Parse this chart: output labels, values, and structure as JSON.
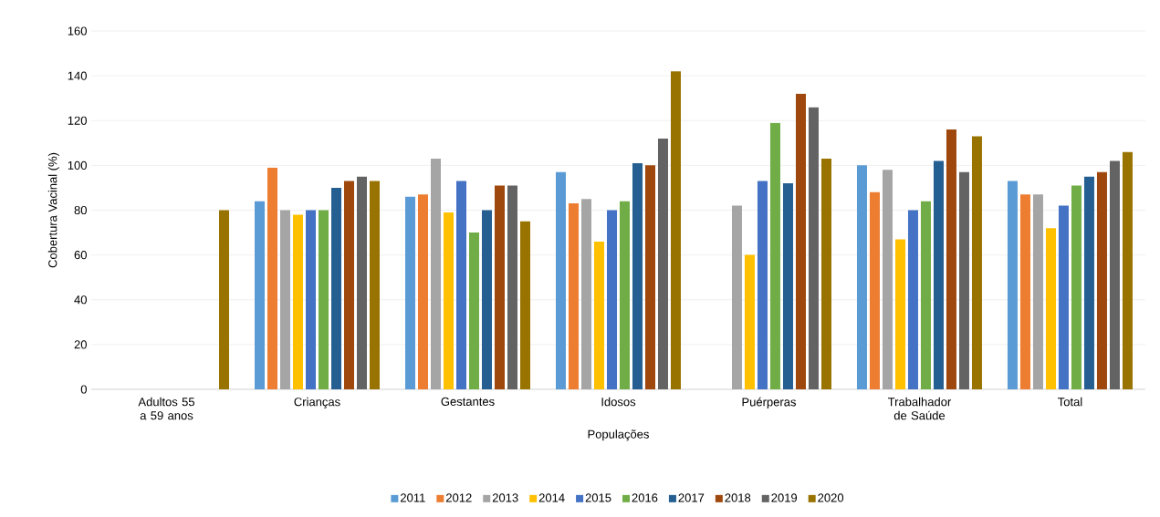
{
  "chart_data": {
    "type": "bar",
    "categories": [
      "Adultos 55 a 59 anos",
      "Crianças",
      "Gestantes",
      "Idosos",
      "Puérperas",
      "Trabalhador de Saúde",
      "Total"
    ],
    "xlabel": "Populações",
    "ylabel": "Cobertura Vacinal (%)",
    "ylim": [
      0,
      160
    ],
    "yticks": [
      0,
      20,
      40,
      60,
      80,
      100,
      120,
      140,
      160
    ],
    "grid": "y",
    "legend": "bottom",
    "series": [
      {
        "name": "2011",
        "color": "#5b9bd5",
        "values": [
          null,
          84,
          86,
          97,
          null,
          100,
          93
        ]
      },
      {
        "name": "2012",
        "color": "#ed7d31",
        "values": [
          null,
          99,
          87,
          83,
          null,
          88,
          87
        ]
      },
      {
        "name": "2013",
        "color": "#a5a5a5",
        "values": [
          null,
          80,
          103,
          85,
          82,
          98,
          87
        ]
      },
      {
        "name": "2014",
        "color": "#ffc000",
        "values": [
          null,
          78,
          79,
          66,
          60,
          67,
          72
        ]
      },
      {
        "name": "2015",
        "color": "#4472c4",
        "values": [
          null,
          80,
          93,
          80,
          93,
          80,
          82
        ]
      },
      {
        "name": "2016",
        "color": "#70ad47",
        "values": [
          null,
          80,
          70,
          84,
          119,
          84,
          91
        ]
      },
      {
        "name": "2017",
        "color": "#255e91",
        "values": [
          null,
          90,
          80,
          101,
          92,
          102,
          95
        ]
      },
      {
        "name": "2018",
        "color": "#9e480e",
        "values": [
          null,
          93,
          91,
          100,
          132,
          116,
          97
        ]
      },
      {
        "name": "2019",
        "color": "#636363",
        "values": [
          null,
          95,
          91,
          112,
          126,
          97,
          102
        ]
      },
      {
        "name": "2020",
        "color": "#997300",
        "values": [
          80,
          93,
          75,
          142,
          103,
          113,
          106
        ]
      }
    ]
  }
}
